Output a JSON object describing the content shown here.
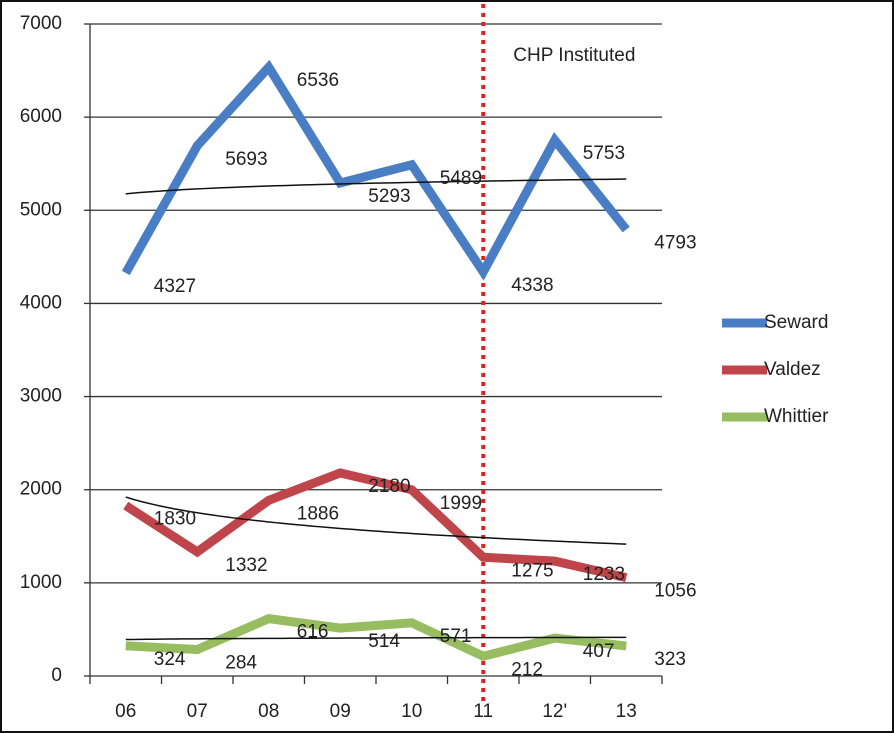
{
  "chart_data": {
    "type": "line",
    "categories": [
      "06",
      "07",
      "08",
      "09",
      "10",
      "11",
      "12'",
      "13"
    ],
    "series": [
      {
        "name": "Seward",
        "color": "#4a7ec4",
        "values": [
          4327,
          5693,
          6536,
          5293,
          5489,
          4338,
          5753,
          4793
        ]
      },
      {
        "name": "Valdez",
        "color": "#c0454a",
        "values": [
          1830,
          1332,
          1886,
          2180,
          1999,
          1275,
          1233,
          1056
        ]
      },
      {
        "name": "Whittier",
        "color": "#98bd60",
        "values": [
          324,
          284,
          616,
          514,
          571,
          212,
          407,
          323
        ]
      }
    ],
    "ylim": [
      0,
      7000
    ],
    "yticks": [
      0,
      1000,
      2000,
      3000,
      4000,
      5000,
      6000,
      7000
    ],
    "grid": true,
    "legend": "right",
    "trendline": "logarithmic",
    "annotations": [
      {
        "text": "CHP Instituted",
        "x": "11",
        "color": "#e02020"
      }
    ]
  }
}
